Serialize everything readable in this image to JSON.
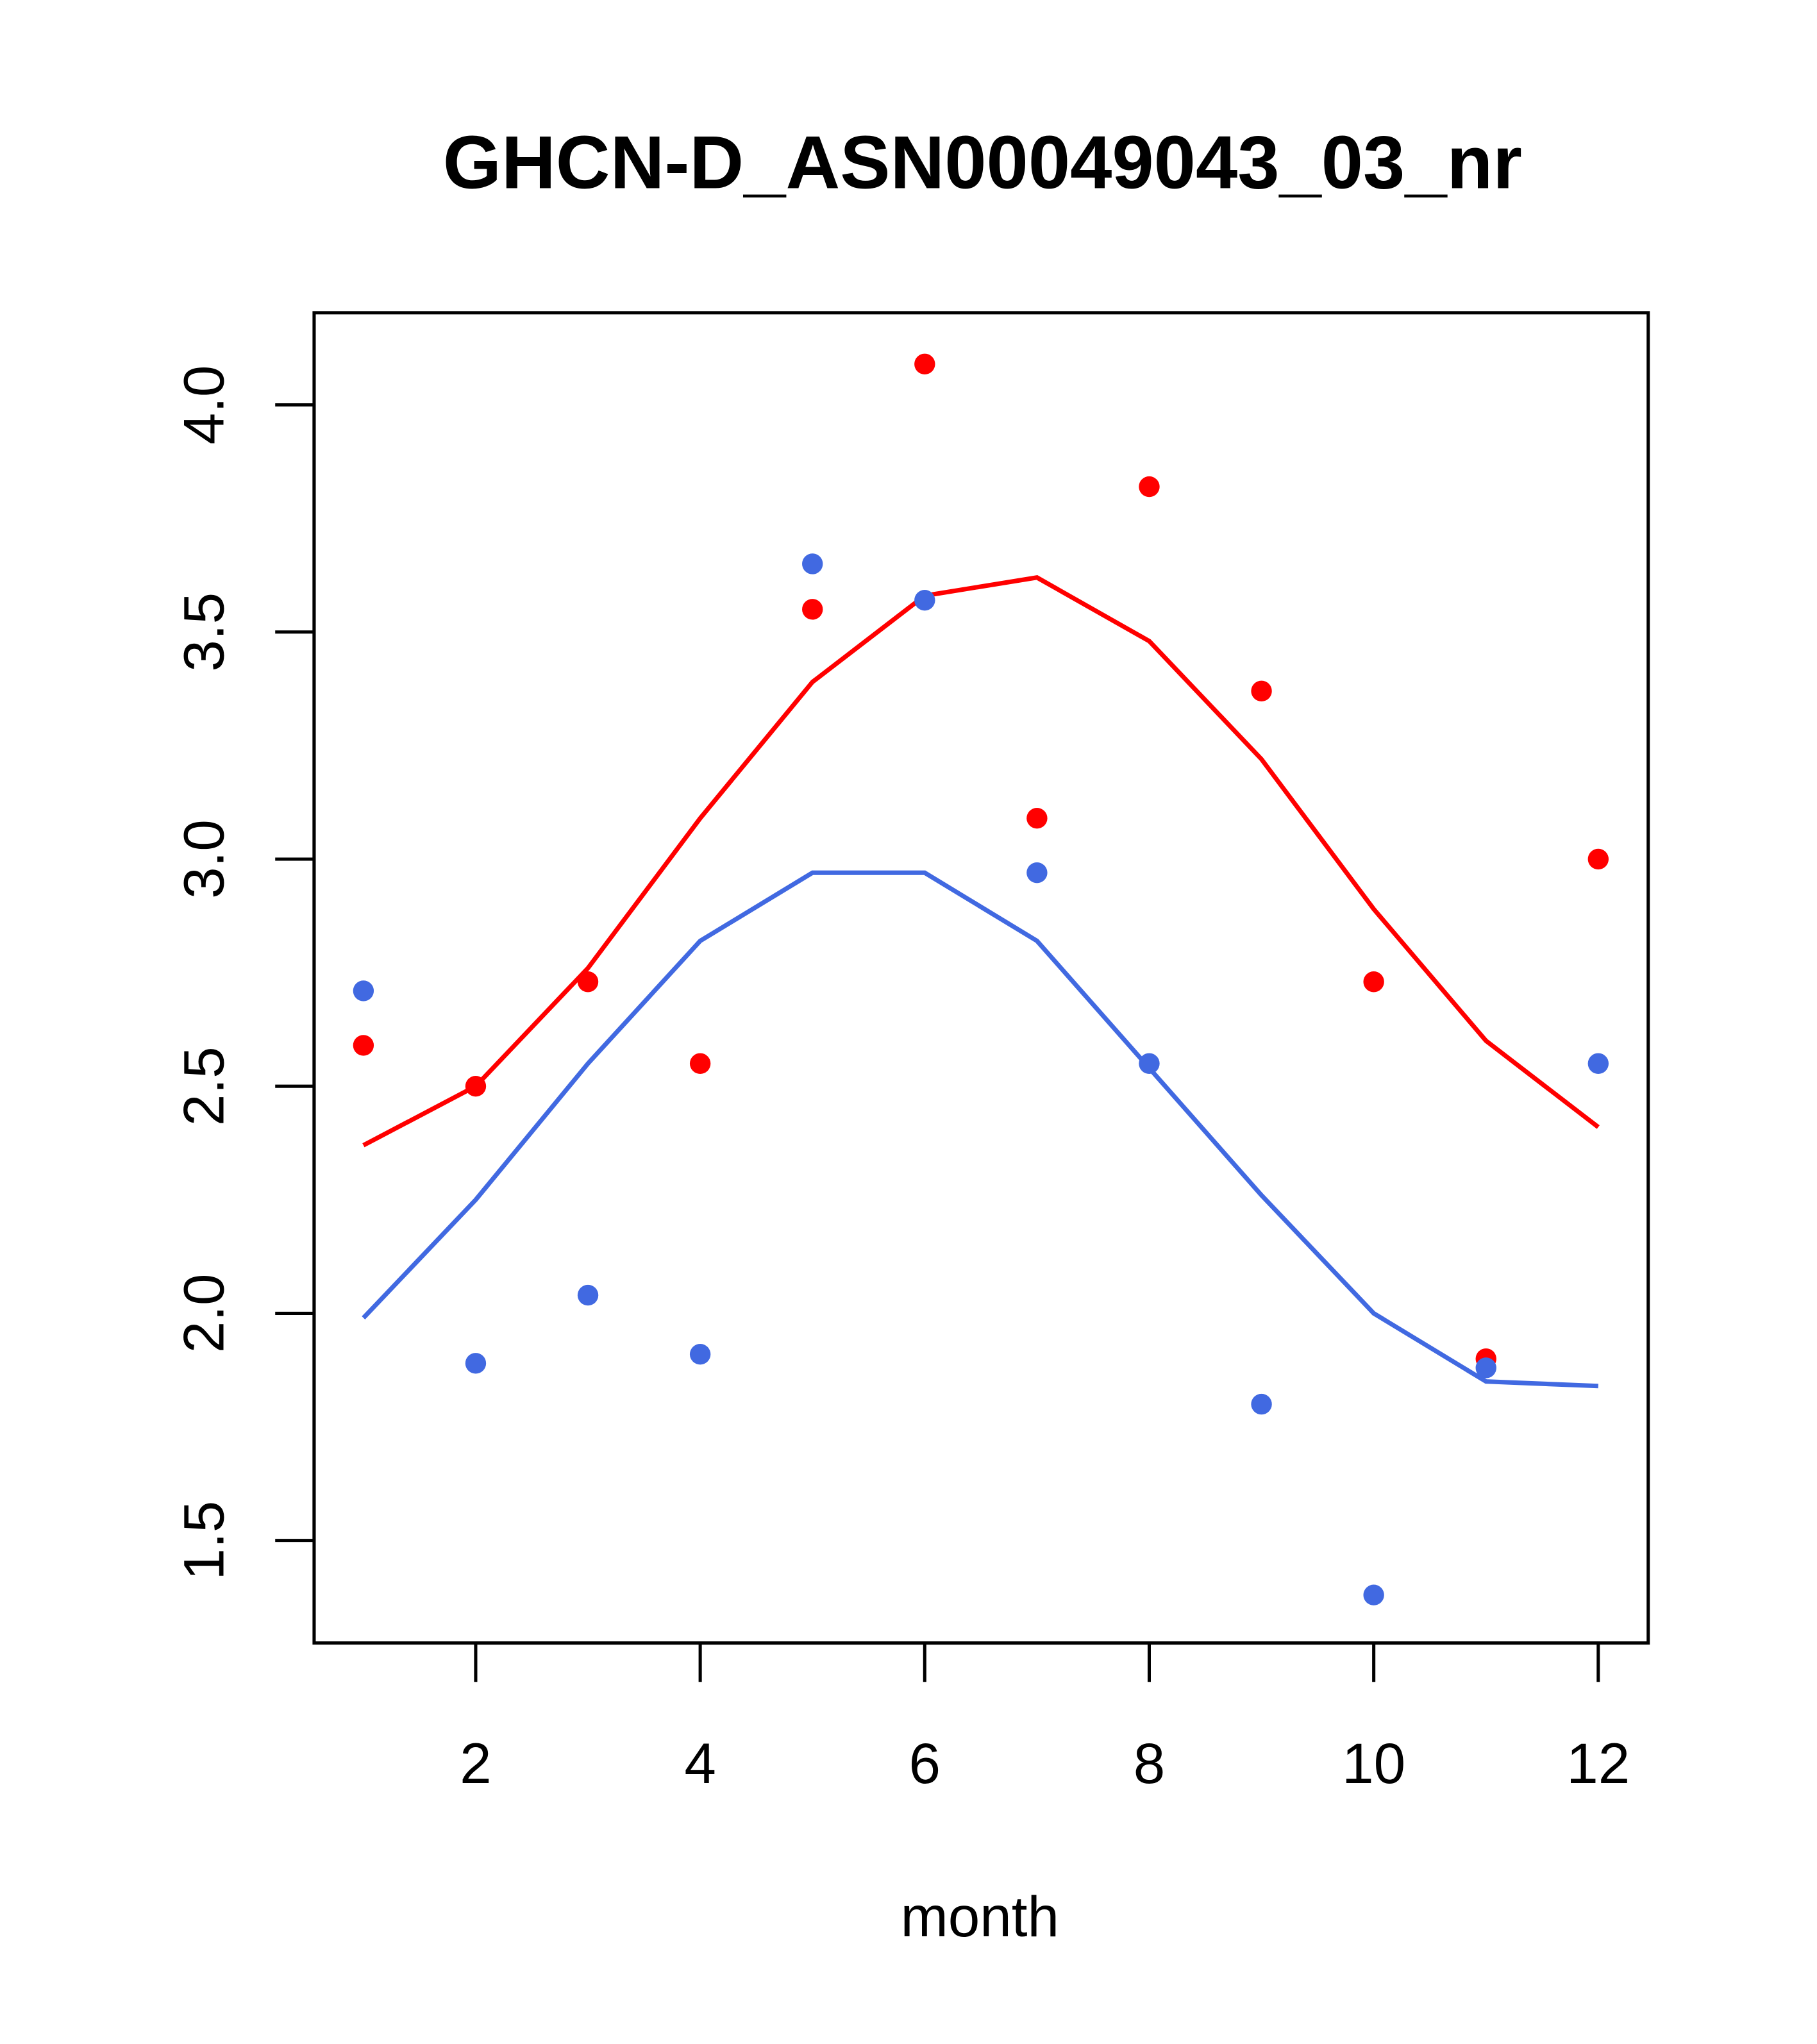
{
  "chart_data": {
    "type": "scatter",
    "title": "GHCN-D_ASN00049043_03_nr",
    "xlabel": "month",
    "ylabel": "",
    "xlim": [
      0.56,
      12.44
    ],
    "ylim": [
      1.27,
      4.2
    ],
    "x_ticks": [
      2,
      4,
      6,
      8,
      10,
      12
    ],
    "y_ticks": [
      1.5,
      2.0,
      2.5,
      3.0,
      3.5,
      4.0
    ],
    "x_tick_labels": [
      "2",
      "4",
      "6",
      "8",
      "10",
      "12"
    ],
    "y_tick_labels": [
      "1.5",
      "2.0",
      "2.5",
      "3.0",
      "3.5",
      "4.0"
    ],
    "grid": false,
    "x": [
      1,
      2,
      3,
      4,
      5,
      6,
      7,
      8,
      9,
      10,
      11,
      12
    ],
    "series": [
      {
        "name": "red points",
        "kind": "points",
        "color": "#ff0000",
        "values": [
          2.59,
          2.5,
          2.73,
          2.55,
          3.55,
          4.09,
          3.09,
          3.82,
          3.37,
          2.73,
          1.9,
          3.0
        ]
      },
      {
        "name": "blue points",
        "kind": "points",
        "color": "#4169e1",
        "values": [
          2.71,
          1.89,
          2.04,
          1.91,
          3.65,
          3.57,
          2.97,
          2.55,
          1.8,
          1.38,
          1.88,
          2.55
        ]
      },
      {
        "name": "red line",
        "kind": "line",
        "color": "#ff0000",
        "values": [
          2.37,
          2.5,
          2.76,
          3.09,
          3.39,
          3.58,
          3.62,
          3.48,
          3.22,
          2.89,
          2.6,
          2.41
        ]
      },
      {
        "name": "blue line",
        "kind": "line",
        "color": "#4169e1",
        "values": [
          1.99,
          2.25,
          2.55,
          2.82,
          2.97,
          2.97,
          2.82,
          2.54,
          2.26,
          2.0,
          1.85,
          1.84
        ]
      }
    ]
  }
}
